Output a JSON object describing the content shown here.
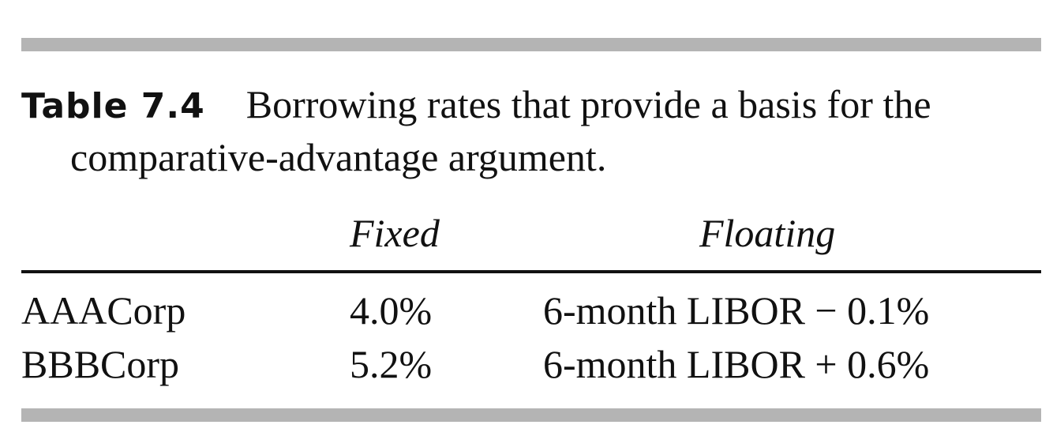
{
  "caption": {
    "label": "Table 7.4",
    "text_line1": "Borrowing rates that provide a basis for the",
    "text_line2": "comparative-advantage argument."
  },
  "table": {
    "headers": [
      "",
      "Fixed",
      "Floating"
    ],
    "rows": [
      [
        "AAACorp",
        "4.0%",
        "6-month LIBOR − 0.1%"
      ],
      [
        "BBBCorp",
        "5.2%",
        "6-month LIBOR + 0.6%"
      ]
    ]
  }
}
